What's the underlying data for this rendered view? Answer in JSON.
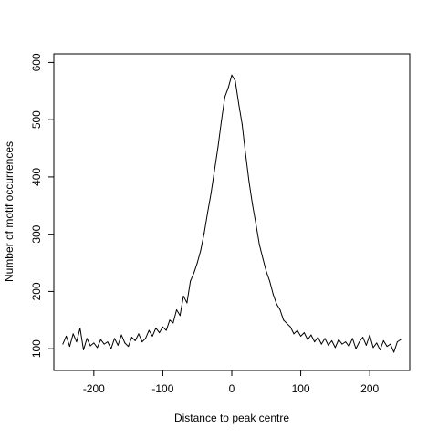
{
  "chart_data": {
    "type": "line",
    "title": "",
    "xlabel": "Distance to peak centre",
    "ylabel": "Number of motif occurrences",
    "xlim": [
      -258,
      258
    ],
    "ylim": [
      62,
      615
    ],
    "xticks": [
      -200,
      -100,
      0,
      100,
      200
    ],
    "yticks": [
      100,
      200,
      300,
      400,
      500,
      600
    ],
    "x_tick_labels": [
      "-200",
      "-100",
      "0",
      "100",
      "200"
    ],
    "y_tick_labels": [
      "100",
      "200",
      "300",
      "400",
      "500",
      "600"
    ],
    "grid": false,
    "legend": "none",
    "series": [
      {
        "color": "#000000",
        "x": [
          -245,
          -240,
          -235,
          -230,
          -225,
          -220,
          -215,
          -210,
          -205,
          -200,
          -195,
          -190,
          -185,
          -180,
          -175,
          -170,
          -165,
          -160,
          -155,
          -150,
          -145,
          -140,
          -135,
          -130,
          -125,
          -120,
          -115,
          -110,
          -105,
          -100,
          -95,
          -90,
          -85,
          -80,
          -75,
          -70,
          -65,
          -60,
          -55,
          -50,
          -45,
          -40,
          -35,
          -30,
          -25,
          -20,
          -15,
          -10,
          -5,
          0,
          5,
          10,
          15,
          20,
          25,
          30,
          35,
          40,
          45,
          50,
          55,
          60,
          65,
          70,
          75,
          80,
          85,
          90,
          95,
          100,
          105,
          110,
          115,
          120,
          125,
          130,
          135,
          140,
          145,
          150,
          155,
          160,
          165,
          170,
          175,
          180,
          185,
          190,
          195,
          200,
          205,
          210,
          215,
          220,
          225,
          230,
          235,
          240,
          245
        ],
        "y": [
          108,
          122,
          104,
          126,
          112,
          136,
          98,
          118,
          105,
          110,
          102,
          116,
          108,
          112,
          100,
          118,
          106,
          124,
          110,
          104,
          120,
          114,
          126,
          112,
          118,
          132,
          122,
          136,
          128,
          138,
          132,
          150,
          145,
          168,
          158,
          192,
          180,
          218,
          232,
          250,
          272,
          302,
          338,
          372,
          412,
          452,
          498,
          540,
          556,
          578,
          568,
          528,
          492,
          440,
          392,
          352,
          318,
          282,
          258,
          235,
          218,
          195,
          178,
          168,
          150,
          144,
          138,
          126,
          132,
          122,
          128,
          116,
          124,
          112,
          120,
          108,
          118,
          106,
          114,
          102,
          116,
          108,
          112,
          104,
          118,
          100,
          112,
          120,
          106,
          124,
          102,
          110,
          98,
          114,
          104,
          108,
          94,
          112,
          116
        ]
      }
    ]
  }
}
